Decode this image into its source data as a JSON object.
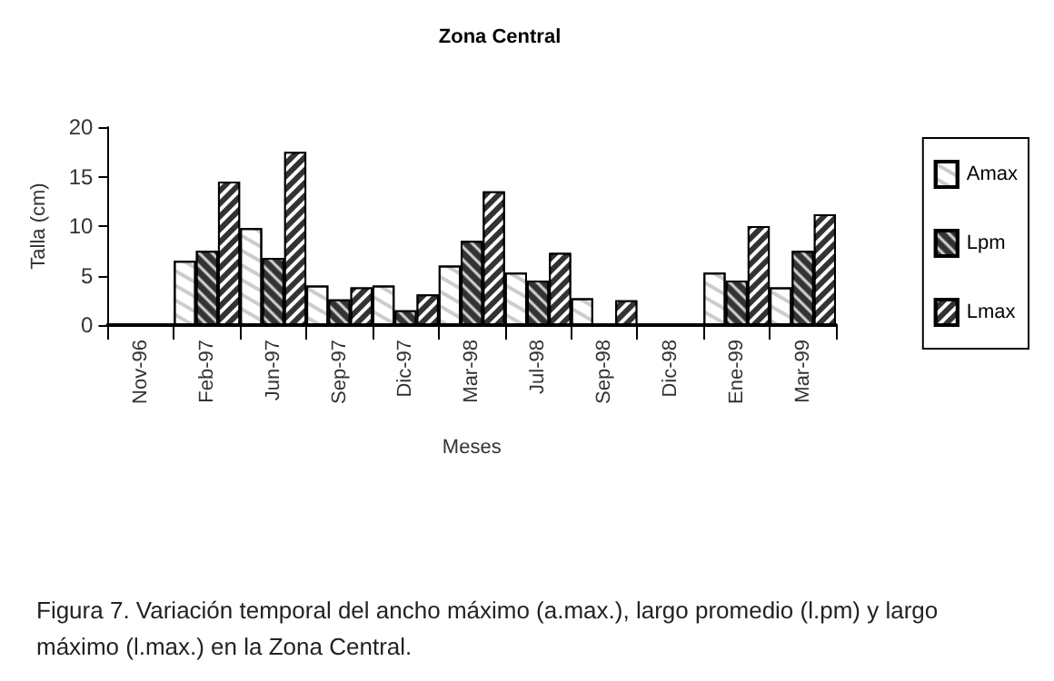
{
  "chart_data": {
    "type": "bar",
    "title": "Zona Central",
    "xlabel": "Meses",
    "ylabel": "Talla (cm)",
    "categories": [
      "Nov-96",
      "Feb-97",
      "Jun-97",
      "Sep-97",
      "Dic-97",
      "Mar-98",
      "Jul-98",
      "Sep-98",
      "Dic-98",
      "Ene-99",
      "Mar-99"
    ],
    "series": [
      {
        "name": "Amax",
        "color": "#ffffff",
        "values": [
          null,
          6.5,
          9.8,
          4,
          4,
          6,
          5.3,
          2.7,
          null,
          5.3,
          3.8
        ]
      },
      {
        "name": "Lpm",
        "color": "#333333",
        "values": [
          null,
          7.5,
          6.8,
          2.6,
          1.5,
          8.5,
          4.5,
          null,
          null,
          4.5,
          7.5
        ]
      },
      {
        "name": "Lmax",
        "color": "#333333",
        "values": [
          null,
          14.5,
          17.5,
          3.8,
          3.1,
          13.5,
          7.3,
          2.5,
          null,
          10,
          11.2
        ]
      }
    ],
    "ylim": [
      0,
      20
    ],
    "yticks": [
      0,
      5,
      10,
      15,
      20
    ],
    "grid": false,
    "legend": "right",
    "annotations": [
      "Figura 7. Variación temporal del ancho máximo (a.max.), largo promedio (l.pm) y largo máximo (l.max.) en la Zona Central."
    ]
  }
}
